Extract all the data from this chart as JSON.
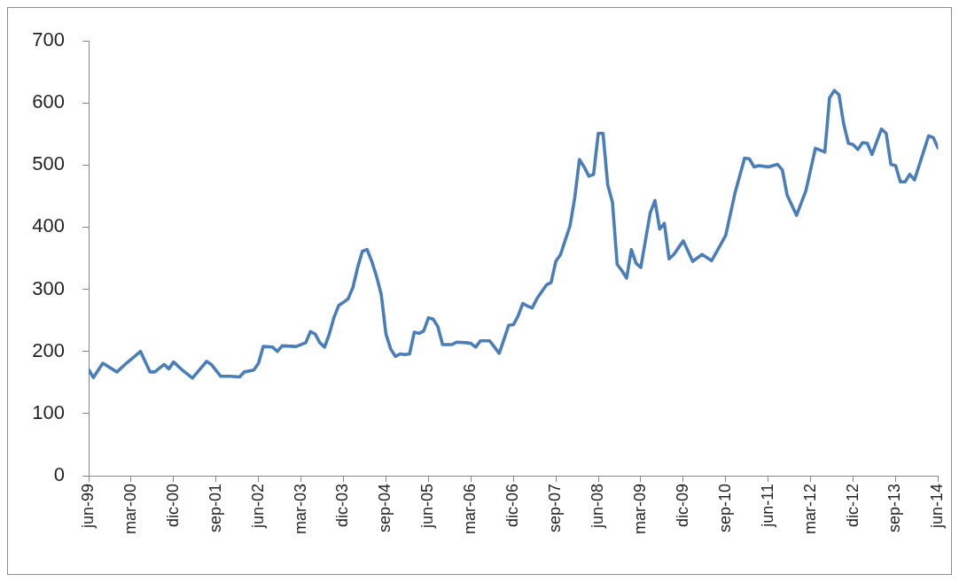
{
  "chart_data": {
    "type": "line",
    "x": [
      "1999-06",
      "1999-07",
      "1999-09",
      "1999-12",
      "2000-02",
      "2000-05",
      "2000-07",
      "2000-08",
      "2000-10",
      "2000-11",
      "2000-12",
      "2001-02",
      "2001-04",
      "2001-07",
      "2001-08",
      "2001-10",
      "2001-12",
      "2002-02",
      "2002-03",
      "2002-05",
      "2002-06",
      "2002-07",
      "2002-09",
      "2002-10",
      "2002-11",
      "2003-02",
      "2003-04",
      "2003-05",
      "2003-06",
      "2003-07",
      "2003-08",
      "2003-09",
      "2003-10",
      "2003-11",
      "2003-12",
      "2004-01",
      "2004-02",
      "2004-03",
      "2004-04",
      "2004-05",
      "2004-06",
      "2004-07",
      "2004-08",
      "2004-09",
      "2004-10",
      "2004-11",
      "2004-12",
      "2005-01",
      "2005-02",
      "2005-03",
      "2005-04",
      "2005-05",
      "2005-06",
      "2005-07",
      "2005-08",
      "2005-09",
      "2005-11",
      "2005-12",
      "2006-02",
      "2006-03",
      "2006-04",
      "2006-05",
      "2006-07",
      "2006-08",
      "2006-09",
      "2006-10",
      "2006-11",
      "2006-12",
      "2007-01",
      "2007-02",
      "2007-03",
      "2007-04",
      "2007-05",
      "2007-07",
      "2007-08",
      "2007-09",
      "2007-10",
      "2007-12",
      "2008-01",
      "2008-02",
      "2008-03",
      "2008-04",
      "2008-05",
      "2008-06",
      "2008-07",
      "2008-08",
      "2008-09",
      "2008-10",
      "2008-11",
      "2008-12",
      "2009-01",
      "2009-02",
      "2009-03",
      "2009-05",
      "2009-06",
      "2009-07",
      "2009-08",
      "2009-09",
      "2009-10",
      "2009-12",
      "2010-02",
      "2010-04",
      "2010-06",
      "2010-08",
      "2010-09",
      "2010-11",
      "2011-01",
      "2011-02",
      "2011-03",
      "2011-04",
      "2011-06",
      "2011-08",
      "2011-09",
      "2011-10",
      "2011-12",
      "2012-02",
      "2012-04",
      "2012-06",
      "2012-07",
      "2012-08",
      "2012-09",
      "2012-10",
      "2012-11",
      "2012-12",
      "2013-01",
      "2013-02",
      "2013-03",
      "2013-04",
      "2013-06",
      "2013-07",
      "2013-08",
      "2013-09",
      "2013-10",
      "2013-11",
      "2013-12",
      "2014-01",
      "2014-04",
      "2014-05",
      "2014-06"
    ],
    "series": [
      {
        "color": "#4a7ebb",
        "values": [
          171,
          158,
          181,
          167,
          181,
          200,
          167,
          167,
          179,
          172,
          183,
          169,
          157,
          184,
          179,
          160,
          160,
          159,
          167,
          170,
          181,
          208,
          207,
          200,
          209,
          208,
          214,
          232,
          228,
          214,
          207,
          228,
          255,
          274,
          279,
          285,
          303,
          335,
          361,
          364,
          345,
          321,
          292,
          228,
          204,
          192,
          196,
          195,
          196,
          231,
          229,
          233,
          254,
          252,
          240,
          211,
          211,
          215,
          214,
          213,
          207,
          217,
          217,
          207,
          197,
          219,
          242,
          243,
          257,
          277,
          273,
          270,
          285,
          307,
          311,
          345,
          356,
          402,
          447,
          509,
          497,
          482,
          485,
          551,
          551,
          468,
          440,
          340,
          330,
          318,
          364,
          342,
          335,
          423,
          443,
          397,
          406,
          349,
          356,
          378,
          345,
          356,
          346,
          373,
          387,
          456,
          511,
          510,
          497,
          499,
          497,
          501,
          492,
          452,
          419,
          459,
          527,
          521,
          608,
          620,
          613,
          566,
          535,
          533,
          525,
          536,
          535,
          517,
          558,
          551,
          501,
          499,
          473,
          473,
          485,
          476,
          547,
          544,
          527
        ]
      }
    ],
    "xlim": [
      "1999-06",
      "2014-06"
    ],
    "xticks": [
      {
        "value": "1999-06",
        "label": "jun-99"
      },
      {
        "value": "2000-03",
        "label": "mar-00"
      },
      {
        "value": "2000-12",
        "label": "dic-00"
      },
      {
        "value": "2001-09",
        "label": "sep-01"
      },
      {
        "value": "2002-06",
        "label": "jun-02"
      },
      {
        "value": "2003-03",
        "label": "mar-03"
      },
      {
        "value": "2003-12",
        "label": "dic-03"
      },
      {
        "value": "2004-09",
        "label": "sep-04"
      },
      {
        "value": "2005-06",
        "label": "jun-05"
      },
      {
        "value": "2006-03",
        "label": "mar-06"
      },
      {
        "value": "2006-12",
        "label": "dic-06"
      },
      {
        "value": "2007-09",
        "label": "sep-07"
      },
      {
        "value": "2008-06",
        "label": "jun-08"
      },
      {
        "value": "2009-03",
        "label": "mar-09"
      },
      {
        "value": "2009-12",
        "label": "dic-09"
      },
      {
        "value": "2010-09",
        "label": "sep-10"
      },
      {
        "value": "2011-06",
        "label": "jun-11"
      },
      {
        "value": "2012-03",
        "label": "mar-12"
      },
      {
        "value": "2012-12",
        "label": "dic-12"
      },
      {
        "value": "2013-09",
        "label": "sep-13"
      },
      {
        "value": "2014-06",
        "label": "jun-14"
      }
    ],
    "ylim": [
      0,
      700
    ],
    "yticks": [
      0,
      100,
      200,
      300,
      400,
      500,
      600,
      700
    ]
  }
}
